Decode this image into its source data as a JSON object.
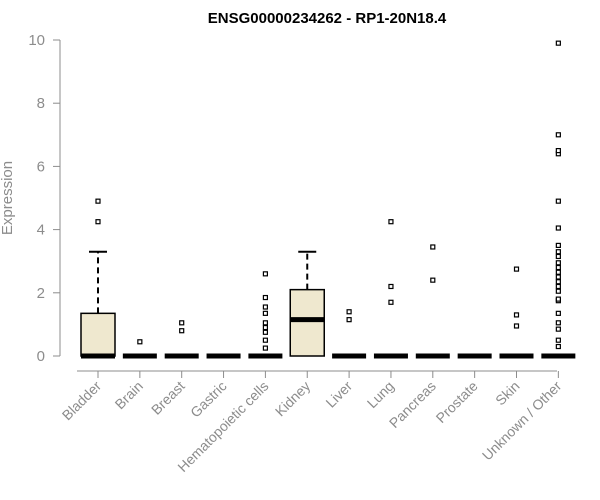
{
  "chart_data": {
    "type": "box",
    "title": "ENSG00000234262 - RP1-20N18.4",
    "xlabel": "",
    "ylabel": "Expression",
    "ylim": [
      0,
      10
    ],
    "yticks": [
      0,
      2,
      4,
      6,
      8,
      10
    ],
    "grid": false,
    "colors": {
      "box_fill": "#efe8cf",
      "stroke": "#000000",
      "axis": "#8c8c8c"
    },
    "categories": [
      "Bladder",
      "Brain",
      "Breast",
      "Gastric",
      "Hematopoietic cells",
      "Kidney",
      "Liver",
      "Lung",
      "Pancreas",
      "Prostate",
      "Skin",
      "Unknown / Other"
    ],
    "boxes": [
      {
        "min": 0,
        "q1": 0,
        "median": 0,
        "q3": 1.35,
        "max": 3.3,
        "outliers": [
          4.25,
          4.9
        ]
      },
      {
        "min": 0,
        "q1": 0,
        "median": 0,
        "q3": 0,
        "max": 0,
        "outliers": [
          0.45
        ]
      },
      {
        "min": 0,
        "q1": 0,
        "median": 0,
        "q3": 0,
        "max": 0,
        "outliers": [
          0.8,
          1.05
        ]
      },
      {
        "min": 0,
        "q1": 0,
        "median": 0,
        "q3": 0,
        "max": 0,
        "outliers": []
      },
      {
        "min": 0,
        "q1": 0,
        "median": 0,
        "q3": 0,
        "max": 0,
        "outliers": [
          0.25,
          0.5,
          0.75,
          0.9,
          1.05,
          1.35,
          1.55,
          1.85,
          2.6
        ]
      },
      {
        "min": 0,
        "q1": 0,
        "median": 1.15,
        "q3": 2.1,
        "max": 3.3,
        "outliers": []
      },
      {
        "min": 0,
        "q1": 0,
        "median": 0,
        "q3": 0,
        "max": 0,
        "outliers": [
          1.15,
          1.4
        ]
      },
      {
        "min": 0,
        "q1": 0,
        "median": 0,
        "q3": 0,
        "max": 0,
        "outliers": [
          1.7,
          2.2,
          4.25
        ]
      },
      {
        "min": 0,
        "q1": 0,
        "median": 0,
        "q3": 0,
        "max": 0,
        "outliers": [
          2.4,
          3.45
        ]
      },
      {
        "min": 0,
        "q1": 0,
        "median": 0,
        "q3": 0,
        "max": 0,
        "outliers": []
      },
      {
        "min": 0,
        "q1": 0,
        "median": 0,
        "q3": 0,
        "max": 0,
        "outliers": [
          0.95,
          1.3,
          2.75
        ]
      },
      {
        "min": 0,
        "q1": 0,
        "median": 0,
        "q3": 0,
        "max": 0,
        "outliers": [
          0.3,
          0.5,
          0.85,
          1.05,
          1.35,
          1.75,
          1.8,
          2.05,
          2.2,
          2.35,
          2.5,
          2.65,
          2.8,
          2.95,
          3.15,
          3.3,
          3.5,
          4.05,
          4.9,
          6.4,
          6.5,
          7.0,
          9.9
        ]
      }
    ]
  }
}
